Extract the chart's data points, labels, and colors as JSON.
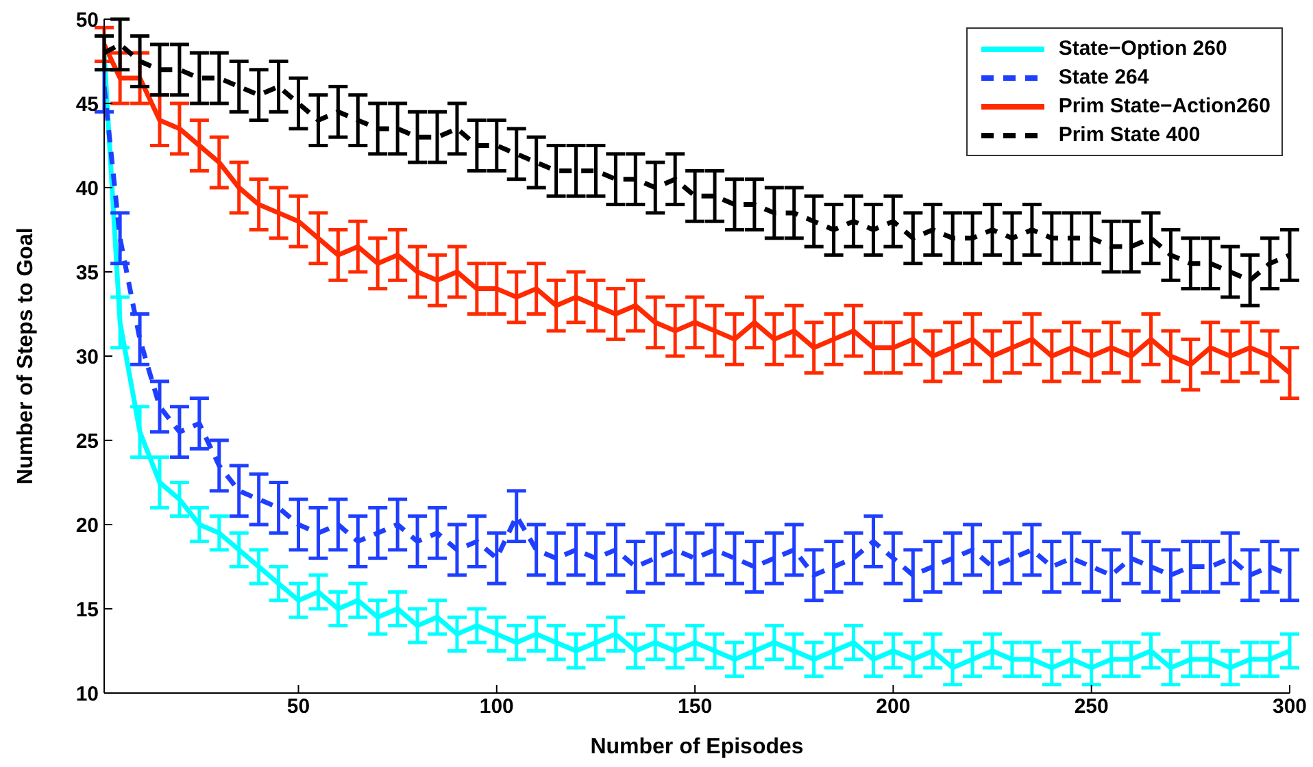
{
  "chart_data": {
    "type": "line",
    "xlabel": "Number of Episodes",
    "ylabel": "Number of Steps to Goal",
    "x": [
      1,
      5,
      10,
      15,
      20,
      25,
      30,
      35,
      40,
      45,
      50,
      55,
      60,
      65,
      70,
      75,
      80,
      85,
      90,
      95,
      100,
      105,
      110,
      115,
      120,
      125,
      130,
      135,
      140,
      145,
      150,
      155,
      160,
      165,
      170,
      175,
      180,
      185,
      190,
      195,
      200,
      205,
      210,
      215,
      220,
      225,
      230,
      235,
      240,
      245,
      250,
      255,
      260,
      265,
      270,
      275,
      280,
      285,
      290,
      295,
      300
    ],
    "xlim": [
      1,
      300
    ],
    "xticks": [
      50,
      100,
      150,
      200,
      250,
      300
    ],
    "ylim": [
      10,
      50
    ],
    "yticks": [
      10,
      15,
      20,
      25,
      30,
      35,
      40,
      45,
      50
    ],
    "legend": "top right",
    "series": [
      {
        "name": "State−Option 260",
        "color": "#00ffff",
        "line_style": "solid",
        "values": [
          48,
          32,
          25.5,
          22.5,
          21.5,
          20,
          19.5,
          18.5,
          17.5,
          16.5,
          15.5,
          16,
          15,
          15.5,
          14.5,
          15,
          14,
          14.5,
          13.5,
          14,
          13.5,
          13,
          13.5,
          13,
          12.5,
          13,
          13.5,
          12.5,
          13,
          12.5,
          13,
          12.5,
          12,
          12.5,
          13,
          12.5,
          12,
          12.5,
          13,
          12,
          12.5,
          12,
          12.5,
          11.5,
          12,
          12.5,
          12,
          12,
          11.5,
          12,
          11.5,
          12,
          12,
          12.5,
          11.5,
          12,
          12,
          11.5,
          12,
          12,
          12.5
        ],
        "errors": [
          1,
          1.5,
          1.5,
          1.5,
          1,
          1,
          1,
          1,
          1,
          1,
          1,
          1,
          1,
          1,
          1,
          1,
          1,
          1,
          1,
          1,
          1,
          1,
          1,
          1,
          1,
          1,
          1,
          1,
          1,
          1,
          1,
          1,
          1,
          1,
          1,
          1,
          1,
          1,
          1,
          1,
          1,
          1,
          1,
          1,
          1,
          1,
          1,
          1,
          1,
          1,
          1,
          1,
          1,
          1,
          1,
          1,
          1,
          1,
          1,
          1,
          1
        ]
      },
      {
        "name": "State 264",
        "color": "#1f3fff",
        "line_style": "dashed",
        "values": [
          46,
          37,
          31,
          27,
          25.5,
          26,
          23.5,
          22,
          21.5,
          21,
          20,
          19.5,
          20,
          19,
          19.5,
          20,
          19,
          19.5,
          18.5,
          19,
          18,
          20.5,
          18.5,
          18,
          18.5,
          18,
          18.5,
          17.5,
          18,
          18.5,
          18,
          18.5,
          18,
          17.5,
          18,
          18.5,
          17,
          17.5,
          18,
          19,
          18,
          17,
          17.5,
          18,
          18.5,
          17.5,
          18,
          18.5,
          17.5,
          18,
          17.5,
          17,
          18,
          17.5,
          17,
          17.5,
          17.5,
          18,
          17,
          17.5,
          17
        ],
        "errors": [
          1.5,
          1.5,
          1.5,
          1.5,
          1.5,
          1.5,
          1.5,
          1.5,
          1.5,
          1.5,
          1.5,
          1.5,
          1.5,
          1.5,
          1.5,
          1.5,
          1.5,
          1.5,
          1.5,
          1.5,
          1.5,
          1.5,
          1.5,
          1.5,
          1.5,
          1.5,
          1.5,
          1.5,
          1.5,
          1.5,
          1.5,
          1.5,
          1.5,
          1.5,
          1.5,
          1.5,
          1.5,
          1.5,
          1.5,
          1.5,
          1.5,
          1.5,
          1.5,
          1.5,
          1.5,
          1.5,
          1.5,
          1.5,
          1.5,
          1.5,
          1.5,
          1.5,
          1.5,
          1.5,
          1.5,
          1.5,
          1.5,
          1.5,
          1.5,
          1.5,
          1.5
        ]
      },
      {
        "name": "Prim State−Action260",
        "color": "#ff2a00",
        "line_style": "solid",
        "values": [
          48.5,
          46.5,
          46.5,
          44,
          43.5,
          42.5,
          41.5,
          40,
          39,
          38.5,
          38,
          37,
          36,
          36.5,
          35.5,
          36,
          35,
          34.5,
          35,
          34,
          34,
          33.5,
          34,
          33,
          33.5,
          33,
          32.5,
          33,
          32,
          31.5,
          32,
          31.5,
          31,
          32,
          31,
          31.5,
          30.5,
          31,
          31.5,
          30.5,
          30.5,
          31,
          30,
          30.5,
          31,
          30,
          30.5,
          31,
          30,
          30.5,
          30,
          30.5,
          30,
          31,
          30,
          29.5,
          30.5,
          30,
          30.5,
          30,
          29
        ],
        "errors": [
          1,
          1.5,
          1.5,
          1.5,
          1.5,
          1.5,
          1.5,
          1.5,
          1.5,
          1.5,
          1.5,
          1.5,
          1.5,
          1.5,
          1.5,
          1.5,
          1.5,
          1.5,
          1.5,
          1.5,
          1.5,
          1.5,
          1.5,
          1.5,
          1.5,
          1.5,
          1.5,
          1.5,
          1.5,
          1.5,
          1.5,
          1.5,
          1.5,
          1.5,
          1.5,
          1.5,
          1.5,
          1.5,
          1.5,
          1.5,
          1.5,
          1.5,
          1.5,
          1.5,
          1.5,
          1.5,
          1.5,
          1.5,
          1.5,
          1.5,
          1.5,
          1.5,
          1.5,
          1.5,
          1.5,
          1.5,
          1.5,
          1.5,
          1.5,
          1.5,
          1.5
        ]
      },
      {
        "name": "Prim State 400",
        "color": "#000000",
        "line_style": "dashed",
        "values": [
          48,
          48.5,
          47.5,
          47,
          47,
          46.5,
          46.5,
          46,
          45.5,
          46,
          45,
          44,
          44.5,
          44,
          43.5,
          43.5,
          43,
          43,
          43.5,
          42.5,
          42.5,
          42,
          41.5,
          41,
          41,
          41,
          40.5,
          40.5,
          40,
          40.5,
          39.5,
          39.5,
          39,
          39,
          38.5,
          38.5,
          38,
          37.5,
          38,
          37.5,
          38,
          37,
          37.5,
          37,
          37,
          37.5,
          37,
          37.5,
          37,
          37,
          37,
          36.5,
          36.5,
          37,
          36,
          35.5,
          35.5,
          35,
          34.5,
          35.5,
          36
        ],
        "errors": [
          1,
          1.5,
          1.5,
          1.5,
          1.5,
          1.5,
          1.5,
          1.5,
          1.5,
          1.5,
          1.5,
          1.5,
          1.5,
          1.5,
          1.5,
          1.5,
          1.5,
          1.5,
          1.5,
          1.5,
          1.5,
          1.5,
          1.5,
          1.5,
          1.5,
          1.5,
          1.5,
          1.5,
          1.5,
          1.5,
          1.5,
          1.5,
          1.5,
          1.5,
          1.5,
          1.5,
          1.5,
          1.5,
          1.5,
          1.5,
          1.5,
          1.5,
          1.5,
          1.5,
          1.5,
          1.5,
          1.5,
          1.5,
          1.5,
          1.5,
          1.5,
          1.5,
          1.5,
          1.5,
          1.5,
          1.5,
          1.5,
          1.5,
          1.5,
          1.5,
          1.5
        ]
      }
    ]
  }
}
